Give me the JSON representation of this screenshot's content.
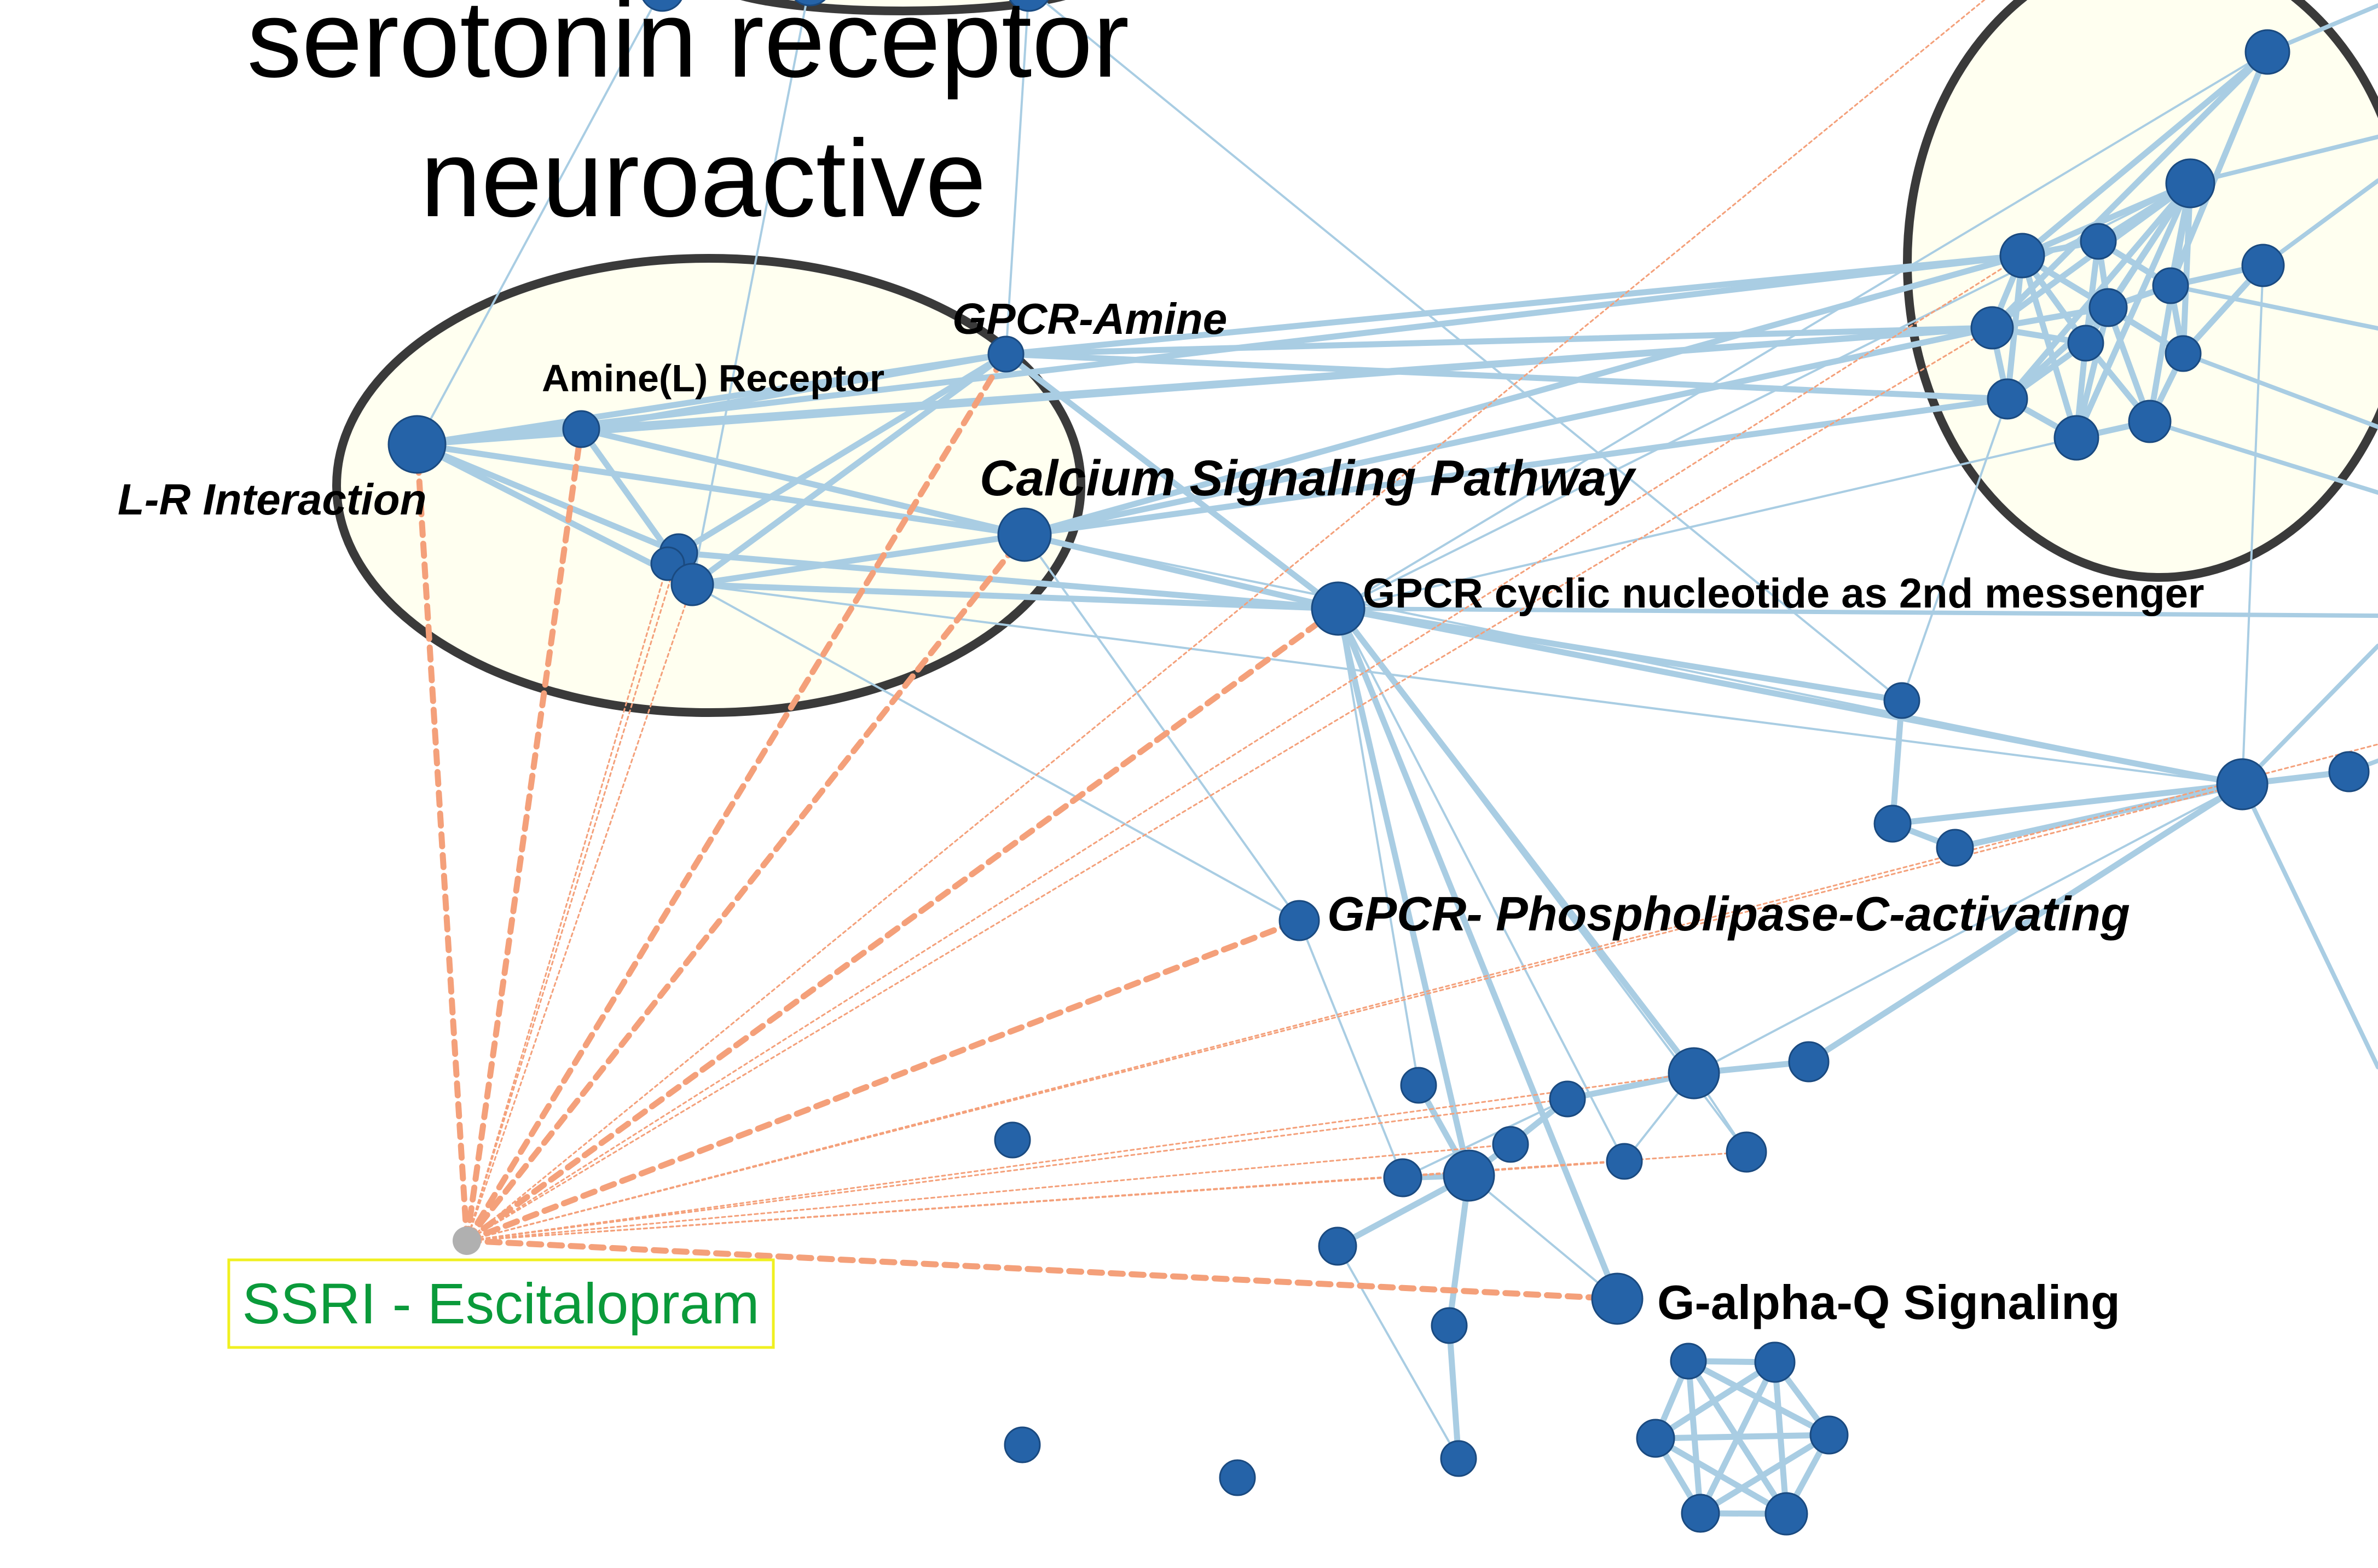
{
  "cluster_title_lines": [
    "serotonin receptor",
    "neuroactive"
  ],
  "nodes": {
    "lr_interaction": "L-R Interaction",
    "amine_receptor": "Amine(L) Receptor",
    "gpcr_amine": "GPCR-Amine",
    "calcium_signaling": "Calcium Signaling Pathway",
    "gpcr_cyclic": "GPCR cyclic nucleotide as 2nd messenger",
    "gpcr_plc": "GPCR- Phospholipase-C-activating",
    "galpha_q": "G-alpha-Q Signaling"
  },
  "drug": {
    "label": "SSRI - Escitalopram"
  },
  "colors": {
    "node_fill": "#2563a8",
    "node_stroke": "#1a4a80",
    "edge_pathway": "#a9cde3",
    "edge_drug": "#f4a07a",
    "cluster_fill": "#fffff0",
    "cluster_stroke": "#3a3a3a",
    "drug_label_text": "#0a9a3a",
    "drug_label_border": "#f0f020",
    "drug_node": "#b0b0b0"
  }
}
